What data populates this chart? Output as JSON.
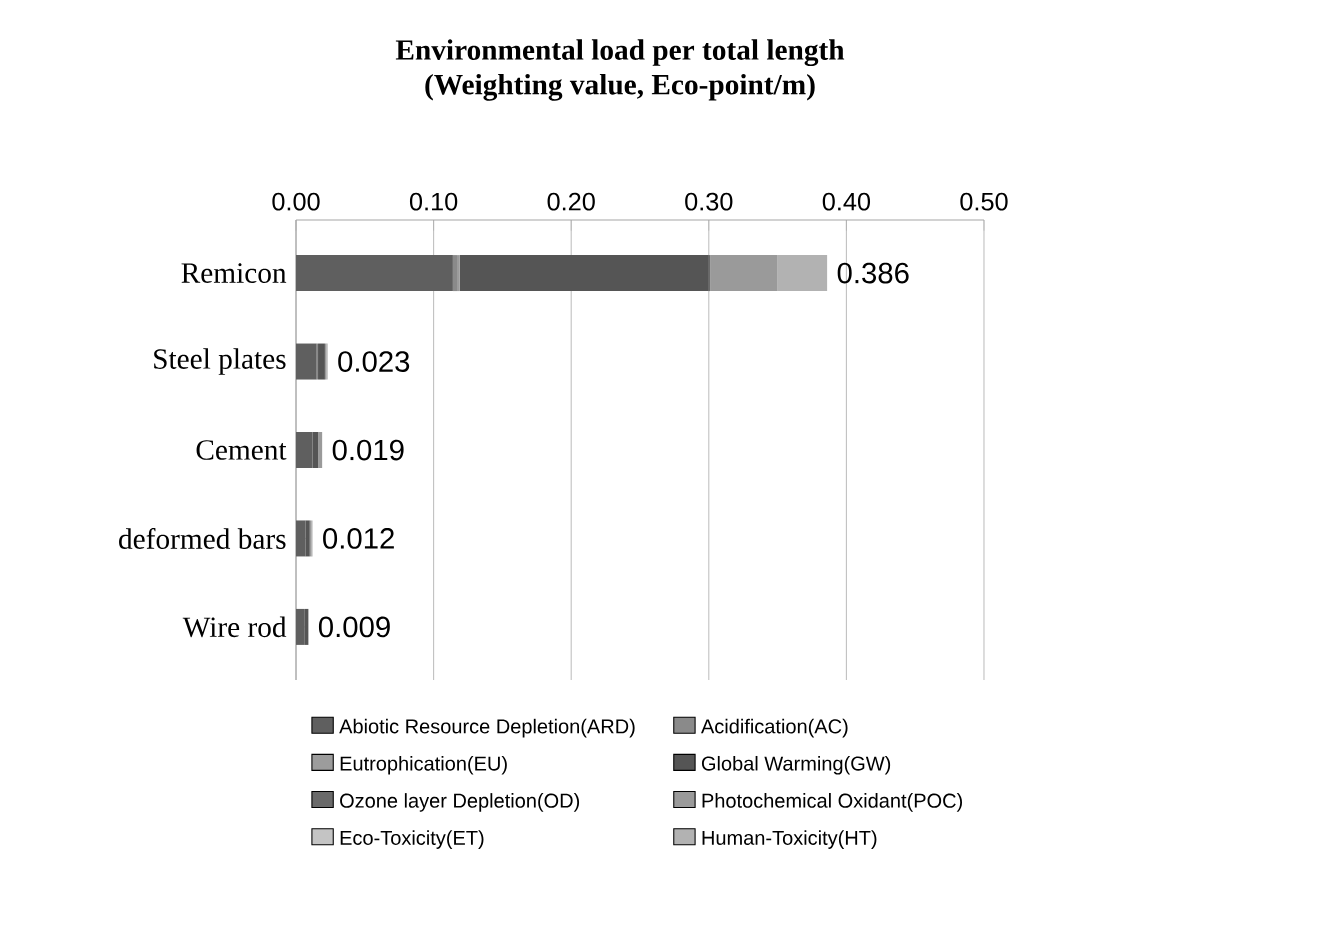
{
  "chart_data": {
    "type": "bar",
    "orientation": "horizontal",
    "stacked": true,
    "title": "Environmental load per total length",
    "subtitle": "(Weighting value, Eco-point/m)",
    "categories": [
      "Remicon",
      "Steel plates",
      "Cement",
      "deformed bars",
      "Wire rod"
    ],
    "series": [
      {
        "name": "Abiotic Resource Depletion(ARD)",
        "color": "#5f5f5f",
        "values": [
          0.114,
          0.015,
          0.012,
          0.007,
          0.006
        ]
      },
      {
        "name": "Acidification(AC)",
        "color": "#8a8a8a",
        "values": [
          0.003,
          0.001,
          0.0,
          0.0,
          0.0
        ]
      },
      {
        "name": "Eutrophication(EU)",
        "color": "#9c9c9c",
        "values": [
          0.002,
          0.0,
          0.0,
          0.0,
          0.0
        ]
      },
      {
        "name": "Global Warming(GW)",
        "color": "#555555",
        "values": [
          0.181,
          0.005,
          0.004,
          0.003,
          0.003
        ]
      },
      {
        "name": "Ozone layer Depletion(OD)",
        "color": "#6a6a6a",
        "values": [
          0.001,
          0.0,
          0.0,
          0.0,
          0.0
        ]
      },
      {
        "name": "Photochemical Oxidant(POC)",
        "color": "#9a9a9a",
        "values": [
          0.049,
          0.001,
          0.003,
          0.001,
          0.0
        ]
      },
      {
        "name": "Eco-Toxicity(ET)",
        "color": "#c4c4c4",
        "values": [
          null,
          0.0,
          0.0,
          0.0,
          0.0
        ]
      },
      {
        "name": "Human-Toxicity(HT)",
        "color": "#b2b2b2",
        "values": [
          0.036,
          0.001,
          null,
          0.001,
          null
        ]
      }
    ],
    "totals": [
      "0.386",
      "0.023",
      "0.019",
      "0.012",
      "0.009"
    ],
    "xlim": [
      0,
      0.5
    ],
    "xticks": [
      {
        "value": 0,
        "label": "0.00"
      },
      {
        "value": 0.1,
        "label": "0.10"
      },
      {
        "value": 0.2,
        "label": "0.20"
      },
      {
        "value": 0.3,
        "label": "0.30"
      },
      {
        "value": 0.4,
        "label": "0.40"
      },
      {
        "value": 0.5,
        "label": "0.50"
      }
    ],
    "grid": "x",
    "legend": "bottom"
  }
}
